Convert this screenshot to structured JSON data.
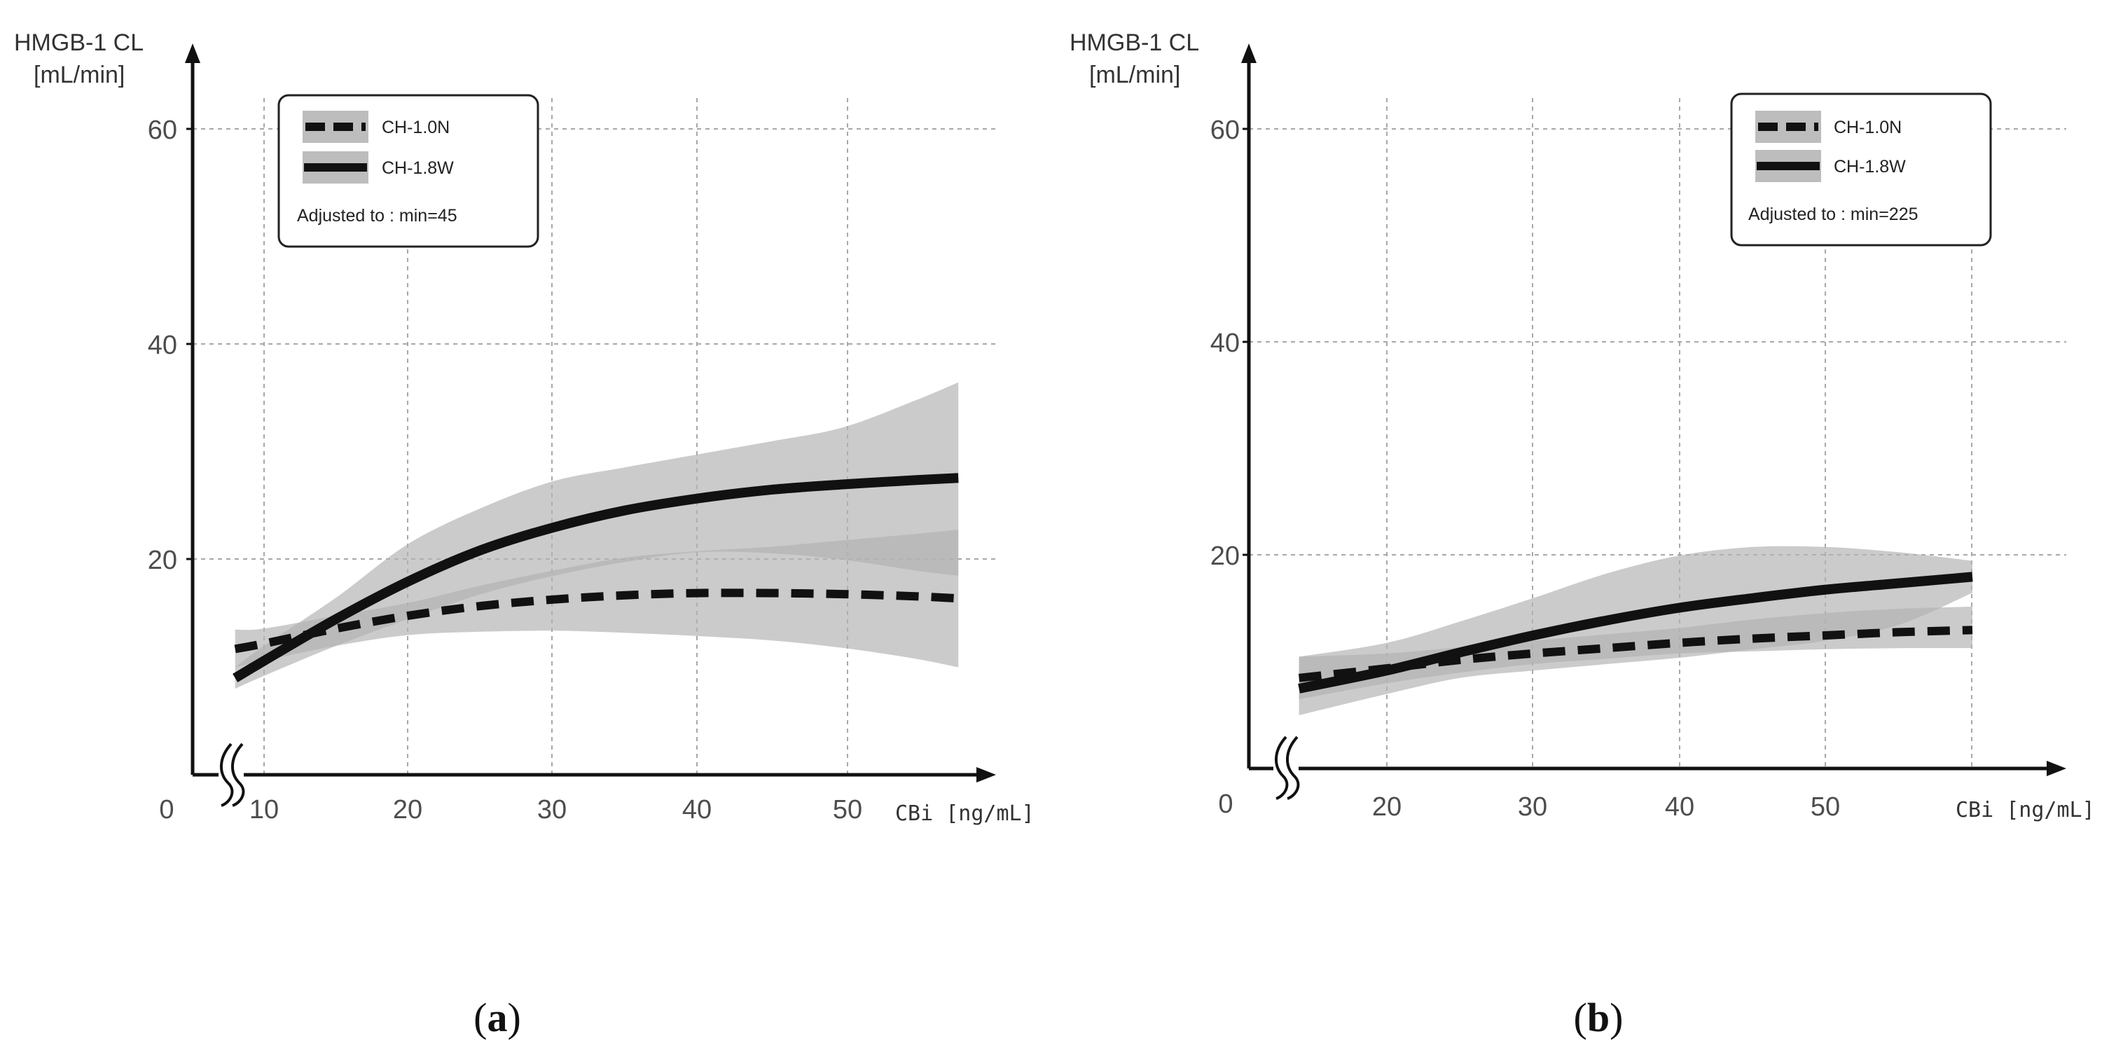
{
  "figure": {
    "panels": [
      {
        "caption": "a"
      },
      {
        "caption": "b"
      }
    ]
  },
  "chart_data": [
    {
      "type": "line",
      "panel": "a",
      "ylabel_line1": "HMGB-1 CL",
      "ylabel_line2": "[mL/min]",
      "xlabel": "CBi [ng/mL]",
      "origin_label": "0",
      "x_ticks": [
        10,
        20,
        30,
        40,
        50
      ],
      "y_ticks": [
        20,
        40,
        60
      ],
      "xlim": [
        8,
        58
      ],
      "ylim": [
        0,
        60
      ],
      "grid": true,
      "axis_break": true,
      "legend": {
        "placement": "top-left",
        "entries": [
          "CH-1.0N",
          "CH-1.8W"
        ],
        "note": "Adjusted to : min=45"
      },
      "series": [
        {
          "name": "CH-1.0N",
          "style": "dashed",
          "x": [
            8,
            10,
            15,
            20,
            25,
            30,
            35,
            40,
            45,
            50,
            55,
            58
          ],
          "y": [
            11.7,
            12.2,
            13.6,
            14.8,
            15.7,
            16.3,
            16.7,
            16.9,
            16.9,
            16.8,
            16.6,
            16.4
          ],
          "lower": [
            10.0,
            10.6,
            12.0,
            13.0,
            13.3,
            13.4,
            13.2,
            12.9,
            12.5,
            11.8,
            10.8,
            10.0
          ],
          "upper": [
            13.5,
            13.6,
            14.8,
            16.0,
            17.6,
            19.0,
            20.2,
            20.8,
            21.2,
            21.8,
            22.4,
            22.8
          ]
        },
        {
          "name": "CH-1.8W",
          "style": "solid",
          "x": [
            8,
            10,
            15,
            20,
            25,
            30,
            35,
            40,
            45,
            50,
            55,
            58
          ],
          "y": [
            9.0,
            10.6,
            14.5,
            18.0,
            20.9,
            23.0,
            24.6,
            25.7,
            26.5,
            27.0,
            27.4,
            27.6
          ],
          "lower": [
            8.0,
            9.2,
            12.0,
            14.5,
            16.8,
            18.5,
            19.8,
            20.7,
            20.6,
            20.0,
            19.0,
            18.5
          ],
          "upper": [
            10.0,
            12.0,
            16.5,
            21.5,
            24.8,
            27.3,
            28.6,
            29.8,
            31.0,
            32.3,
            34.8,
            36.5
          ]
        }
      ]
    },
    {
      "type": "line",
      "panel": "b",
      "ylabel_line1": "HMGB-1 CL",
      "ylabel_line2": "[mL/min]",
      "xlabel": "CBi [ng/mL]",
      "origin_label": "0",
      "x_ticks": [
        20,
        30,
        40,
        50
      ],
      "y_ticks": [
        20,
        40,
        60
      ],
      "xlim": [
        13,
        61
      ],
      "ylim": [
        0,
        60
      ],
      "grid": true,
      "axis_break": true,
      "legend": {
        "placement": "top-right",
        "entries": [
          "CH-1.0N",
          "CH-1.8W"
        ],
        "note": "Adjusted to : min=225"
      },
      "series": [
        {
          "name": "CH-1.0N",
          "style": "dashed",
          "x": [
            14,
            20,
            25,
            30,
            35,
            40,
            45,
            50,
            55,
            60
          ],
          "y": [
            8.5,
            9.4,
            10.2,
            10.8,
            11.3,
            11.8,
            12.2,
            12.5,
            12.8,
            13.0
          ],
          "lower": [
            6.5,
            8.0,
            9.0,
            9.8,
            10.3,
            10.8,
            11.0,
            11.2,
            11.3,
            11.3
          ],
          "upper": [
            10.5,
            10.8,
            11.4,
            12.0,
            12.6,
            13.2,
            14.0,
            14.6,
            15.0,
            15.2
          ]
        },
        {
          "name": "CH-1.8W",
          "style": "solid",
          "x": [
            14,
            20,
            25,
            30,
            35,
            40,
            45,
            50,
            55,
            60
          ],
          "y": [
            7.5,
            9.2,
            10.9,
            12.5,
            13.9,
            15.1,
            16.0,
            16.8,
            17.4,
            18.0
          ],
          "lower": [
            5.0,
            7.0,
            8.5,
            9.2,
            9.8,
            10.4,
            11.2,
            12.0,
            13.5,
            16.5
          ],
          "upper": [
            10.5,
            11.8,
            13.8,
            16.0,
            18.3,
            20.0,
            20.8,
            20.8,
            20.3,
            19.5
          ]
        }
      ]
    }
  ]
}
